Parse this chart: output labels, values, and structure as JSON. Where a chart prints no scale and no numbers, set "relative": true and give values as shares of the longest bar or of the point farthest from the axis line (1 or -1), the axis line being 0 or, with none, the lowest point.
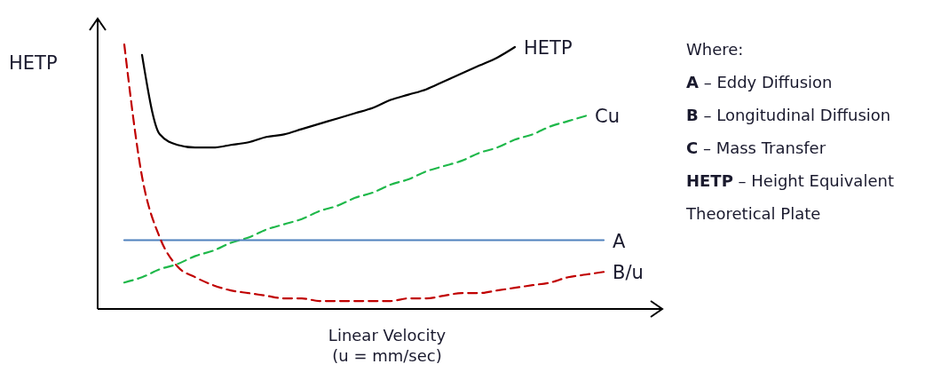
{
  "chart_data": {
    "type": "line",
    "relative": true,
    "ylabel": "HETP",
    "xlabel": "Linear Velocity (u = mm/sec)",
    "categories": [
      null,
      null,
      null,
      null,
      null,
      null,
      null,
      null,
      null,
      null,
      null,
      null,
      null,
      null,
      null,
      null,
      null,
      null,
      null,
      null,
      null,
      null,
      null,
      null,
      null,
      null,
      null,
      null
    ],
    "series": [
      {
        "name": "HETP",
        "color": "#000000",
        "line_style": "solid",
        "values": [
          null,
          0.96,
          0.66,
          0.62,
          0.61,
          0.61,
          0.62,
          0.63,
          0.65,
          0.66,
          0.68,
          0.7,
          0.72,
          0.74,
          0.76,
          0.79,
          0.81,
          0.83,
          0.86,
          0.89,
          0.92,
          0.95,
          0.99,
          null,
          null,
          null,
          null,
          null
        ]
      },
      {
        "name": "Cu",
        "color": "#1fb84a",
        "line_style": "dashed",
        "values": [
          0.1,
          0.12,
          0.15,
          0.17,
          0.2,
          0.22,
          0.25,
          0.27,
          0.3,
          0.32,
          0.34,
          0.37,
          0.39,
          0.42,
          0.44,
          0.47,
          0.49,
          0.52,
          0.54,
          0.56,
          0.59,
          0.61,
          0.64,
          0.66,
          0.69,
          0.71,
          0.73,
          null
        ]
      },
      {
        "name": "A",
        "color": "#4f81bd",
        "line_style": "solid",
        "values": [
          0.26,
          0.26,
          0.26,
          0.26,
          0.26,
          0.26,
          0.26,
          0.26,
          0.26,
          0.26,
          0.26,
          0.26,
          0.26,
          0.26,
          0.26,
          0.26,
          0.26,
          0.26,
          0.26,
          0.26,
          0.26,
          0.26,
          0.26,
          0.26,
          0.26,
          0.26,
          0.26,
          0.26
        ]
      },
      {
        "name": "B/u",
        "color": "#c00000",
        "line_style": "dashed",
        "values": [
          1.0,
          0.5,
          0.27,
          0.16,
          0.12,
          0.09,
          0.07,
          0.06,
          0.05,
          0.04,
          0.04,
          0.03,
          0.03,
          0.03,
          0.03,
          0.03,
          0.04,
          0.04,
          0.05,
          0.06,
          0.06,
          0.07,
          0.08,
          0.09,
          0.1,
          0.12,
          0.13,
          0.14
        ]
      }
    ],
    "annotations": [
      "Where:",
      "A – Eddy Diffusion",
      "B – Longitudinal Diffusion",
      "C – Mass Transfer",
      "HETP – Height Equivalent",
      "Theoretical Plate"
    ]
  }
}
